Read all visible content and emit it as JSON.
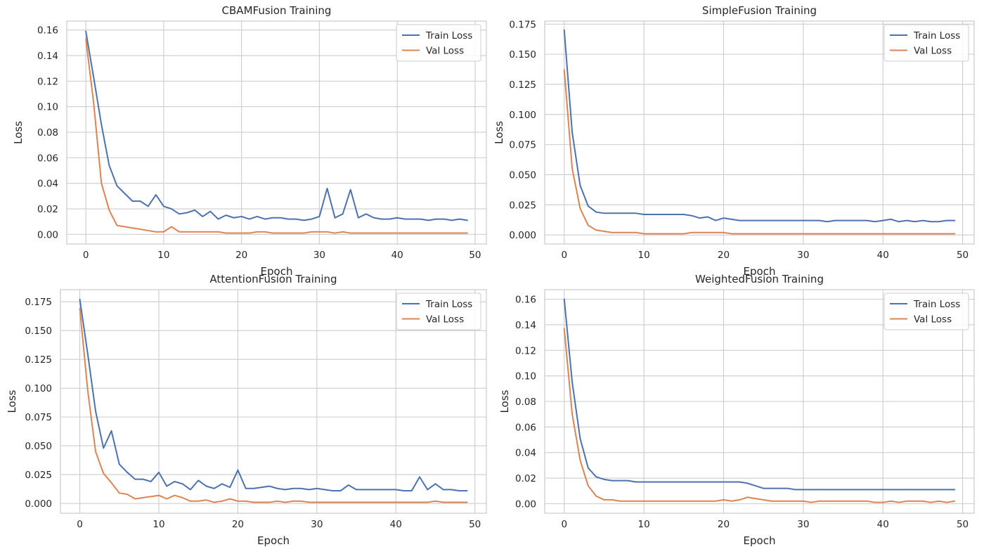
{
  "figure": {
    "background": "#ffffff"
  },
  "chart_data": [
    {
      "type": "line",
      "title": "CBAMFusion Training",
      "xlabel": "Epoch",
      "ylabel": "Loss",
      "xlim": [
        -2.45,
        51.45
      ],
      "ylim": [
        -0.0075,
        0.167
      ],
      "xticks": [
        0,
        10,
        20,
        30,
        40,
        50
      ],
      "xtick_labels": [
        "0",
        "10",
        "20",
        "30",
        "40",
        "50"
      ],
      "yticks": [
        0,
        0.02,
        0.04,
        0.06,
        0.08,
        0.1,
        0.12,
        0.14,
        0.16
      ],
      "ytick_labels": [
        "0.00",
        "0.02",
        "0.04",
        "0.06",
        "0.08",
        "0.10",
        "0.12",
        "0.14",
        "0.16"
      ],
      "grid": true,
      "legend_position": "top-right",
      "series": [
        {
          "name": "Train Loss",
          "color": "#4c72b0",
          "values": [
            0.159,
            0.123,
            0.086,
            0.054,
            0.038,
            0.032,
            0.026,
            0.026,
            0.022,
            0.031,
            0.022,
            0.02,
            0.016,
            0.017,
            0.019,
            0.014,
            0.018,
            0.012,
            0.015,
            0.013,
            0.014,
            0.012,
            0.014,
            0.012,
            0.013,
            0.013,
            0.012,
            0.012,
            0.011,
            0.012,
            0.014,
            0.036,
            0.013,
            0.016,
            0.035,
            0.013,
            0.016,
            0.013,
            0.012,
            0.012,
            0.013,
            0.012,
            0.012,
            0.012,
            0.011,
            0.012,
            0.012,
            0.011,
            0.012,
            0.011
          ]
        },
        {
          "name": "Val Loss",
          "color": "#dd8452",
          "values": [
            0.153,
            0.103,
            0.04,
            0.019,
            0.007,
            0.006,
            0.005,
            0.004,
            0.003,
            0.002,
            0.002,
            0.006,
            0.002,
            0.002,
            0.002,
            0.002,
            0.002,
            0.002,
            0.001,
            0.001,
            0.001,
            0.001,
            0.002,
            0.002,
            0.001,
            0.001,
            0.001,
            0.001,
            0.001,
            0.002,
            0.002,
            0.002,
            0.001,
            0.002,
            0.001,
            0.001,
            0.001,
            0.001,
            0.001,
            0.001,
            0.001,
            0.001,
            0.001,
            0.001,
            0.001,
            0.001,
            0.001,
            0.001,
            0.001,
            0.001
          ]
        }
      ]
    },
    {
      "type": "line",
      "title": "SimpleFusion Training",
      "xlabel": "Epoch",
      "ylabel": "Loss",
      "xlim": [
        -2.45,
        51.45
      ],
      "ylim": [
        -0.0075,
        0.1775
      ],
      "xticks": [
        0,
        10,
        20,
        30,
        40,
        50
      ],
      "xtick_labels": [
        "0",
        "10",
        "20",
        "30",
        "40",
        "50"
      ],
      "yticks": [
        0,
        0.025,
        0.05,
        0.075,
        0.1,
        0.125,
        0.15,
        0.175
      ],
      "ytick_labels": [
        "0.000",
        "0.025",
        "0.050",
        "0.075",
        "0.100",
        "0.125",
        "0.150",
        "0.175"
      ],
      "grid": true,
      "legend_position": "top-right",
      "series": [
        {
          "name": "Train Loss",
          "color": "#4c72b0",
          "values": [
            0.17,
            0.085,
            0.041,
            0.024,
            0.019,
            0.018,
            0.018,
            0.018,
            0.018,
            0.018,
            0.017,
            0.017,
            0.017,
            0.017,
            0.017,
            0.017,
            0.016,
            0.014,
            0.015,
            0.012,
            0.014,
            0.013,
            0.012,
            0.012,
            0.012,
            0.012,
            0.012,
            0.012,
            0.012,
            0.012,
            0.012,
            0.012,
            0.012,
            0.011,
            0.012,
            0.012,
            0.012,
            0.012,
            0.012,
            0.011,
            0.012,
            0.013,
            0.011,
            0.012,
            0.011,
            0.012,
            0.011,
            0.011,
            0.012,
            0.012
          ]
        },
        {
          "name": "Val Loss",
          "color": "#dd8452",
          "values": [
            0.137,
            0.055,
            0.022,
            0.008,
            0.004,
            0.003,
            0.002,
            0.002,
            0.002,
            0.002,
            0.001,
            0.001,
            0.001,
            0.001,
            0.001,
            0.001,
            0.002,
            0.002,
            0.002,
            0.002,
            0.002,
            0.001,
            0.001,
            0.001,
            0.001,
            0.001,
            0.001,
            0.001,
            0.001,
            0.001,
            0.001,
            0.001,
            0.001,
            0.001,
            0.001,
            0.001,
            0.001,
            0.001,
            0.001,
            0.001,
            0.001,
            0.001,
            0.001,
            0.001,
            0.001,
            0.001,
            0.001,
            0.001,
            0.001,
            0.001
          ]
        }
      ]
    },
    {
      "type": "line",
      "title": "AttentionFusion Training",
      "xlabel": "Epoch",
      "ylabel": "Loss",
      "xlim": [
        -2.45,
        51.45
      ],
      "ylim": [
        -0.0085,
        0.1855
      ],
      "xticks": [
        0,
        10,
        20,
        30,
        40,
        50
      ],
      "xtick_labels": [
        "0",
        "10",
        "20",
        "30",
        "40",
        "50"
      ],
      "yticks": [
        0,
        0.025,
        0.05,
        0.075,
        0.1,
        0.125,
        0.15,
        0.175
      ],
      "ytick_labels": [
        "0.000",
        "0.025",
        "0.050",
        "0.075",
        "0.100",
        "0.125",
        "0.150",
        "0.175"
      ],
      "grid": true,
      "legend_position": "top-right",
      "series": [
        {
          "name": "Train Loss",
          "color": "#4c72b0",
          "values": [
            0.177,
            0.13,
            0.08,
            0.048,
            0.063,
            0.034,
            0.027,
            0.021,
            0.021,
            0.019,
            0.027,
            0.015,
            0.019,
            0.017,
            0.012,
            0.02,
            0.015,
            0.013,
            0.017,
            0.014,
            0.029,
            0.013,
            0.013,
            0.014,
            0.015,
            0.013,
            0.012,
            0.013,
            0.013,
            0.012,
            0.013,
            0.012,
            0.011,
            0.011,
            0.016,
            0.012,
            0.012,
            0.012,
            0.012,
            0.012,
            0.012,
            0.011,
            0.011,
            0.023,
            0.012,
            0.017,
            0.012,
            0.012,
            0.011,
            0.011
          ]
        },
        {
          "name": "Val Loss",
          "color": "#dd8452",
          "values": [
            0.169,
            0.098,
            0.045,
            0.026,
            0.018,
            0.009,
            0.008,
            0.004,
            0.005,
            0.006,
            0.007,
            0.004,
            0.007,
            0.005,
            0.002,
            0.002,
            0.003,
            0.001,
            0.002,
            0.004,
            0.002,
            0.002,
            0.001,
            0.001,
            0.001,
            0.002,
            0.001,
            0.002,
            0.002,
            0.001,
            0.001,
            0.001,
            0.001,
            0.001,
            0.001,
            0.001,
            0.001,
            0.001,
            0.001,
            0.001,
            0.001,
            0.001,
            0.001,
            0.001,
            0.001,
            0.002,
            0.001,
            0.001,
            0.001,
            0.001
          ]
        }
      ]
    },
    {
      "type": "line",
      "title": "WeightedFusion Training",
      "xlabel": "Epoch",
      "ylabel": "Loss",
      "xlim": [
        -2.45,
        51.45
      ],
      "ylim": [
        -0.0075,
        0.1675
      ],
      "xticks": [
        0,
        10,
        20,
        30,
        40,
        50
      ],
      "xtick_labels": [
        "0",
        "10",
        "20",
        "30",
        "40",
        "50"
      ],
      "yticks": [
        0,
        0.02,
        0.04,
        0.06,
        0.08,
        0.1,
        0.12,
        0.14,
        0.16
      ],
      "ytick_labels": [
        "0.00",
        "0.02",
        "0.04",
        "0.06",
        "0.08",
        "0.10",
        "0.12",
        "0.14",
        "0.16"
      ],
      "grid": true,
      "legend_position": "top-right",
      "series": [
        {
          "name": "Train Loss",
          "color": "#4c72b0",
          "values": [
            0.16,
            0.095,
            0.051,
            0.028,
            0.021,
            0.019,
            0.018,
            0.018,
            0.018,
            0.017,
            0.017,
            0.017,
            0.017,
            0.017,
            0.017,
            0.017,
            0.017,
            0.017,
            0.017,
            0.017,
            0.017,
            0.017,
            0.017,
            0.016,
            0.014,
            0.012,
            0.012,
            0.012,
            0.012,
            0.011,
            0.011,
            0.011,
            0.011,
            0.011,
            0.011,
            0.011,
            0.011,
            0.011,
            0.011,
            0.011,
            0.011,
            0.011,
            0.011,
            0.011,
            0.011,
            0.011,
            0.011,
            0.011,
            0.011,
            0.011
          ]
        },
        {
          "name": "Val Loss",
          "color": "#dd8452",
          "values": [
            0.137,
            0.07,
            0.034,
            0.014,
            0.006,
            0.003,
            0.003,
            0.002,
            0.002,
            0.002,
            0.002,
            0.002,
            0.002,
            0.002,
            0.002,
            0.002,
            0.002,
            0.002,
            0.002,
            0.002,
            0.003,
            0.002,
            0.003,
            0.005,
            0.004,
            0.003,
            0.002,
            0.002,
            0.002,
            0.002,
            0.002,
            0.001,
            0.002,
            0.002,
            0.002,
            0.002,
            0.002,
            0.002,
            0.002,
            0.001,
            0.001,
            0.002,
            0.001,
            0.002,
            0.002,
            0.002,
            0.001,
            0.002,
            0.001,
            0.002
          ]
        }
      ]
    }
  ]
}
